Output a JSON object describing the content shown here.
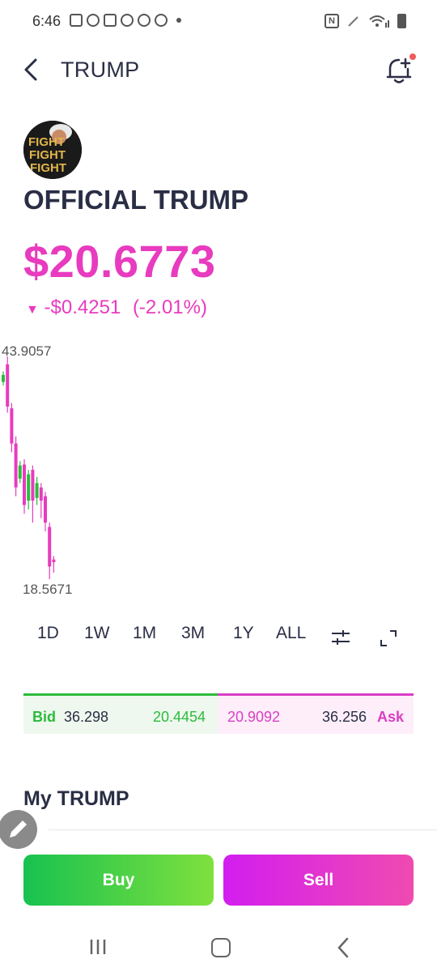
{
  "status_bar": {
    "time": "6:46"
  },
  "header": {
    "title": "TRUMP"
  },
  "coin": {
    "avatar_text": [
      "FIGHT",
      "FIGHT",
      "FIGHT"
    ],
    "name": "OFFICIAL TRUMP",
    "price": "$20.6773",
    "change_arrow": "▼",
    "change": "-$0.4251",
    "change_pct": "(-2.01%)"
  },
  "chart": {
    "high_label": "43.9057",
    "low_label": "18.5671"
  },
  "chart_data": {
    "type": "candlestick",
    "y_range": [
      18.5671,
      43.9057
    ],
    "colors": {
      "up": "#2cbb3c",
      "down": "#e83bbf"
    },
    "candles": [
      {
        "open": 41.0,
        "close": 41.8,
        "high": 42.2,
        "low": 40.6
      },
      {
        "open": 43.0,
        "close": 38.2,
        "high": 43.9057,
        "low": 37.5
      },
      {
        "open": 38.0,
        "close": 34.0,
        "high": 38.6,
        "low": 33.0
      },
      {
        "open": 34.0,
        "close": 29.0,
        "high": 34.8,
        "low": 28.0
      },
      {
        "open": 30.0,
        "close": 31.5,
        "high": 32.0,
        "low": 29.5
      },
      {
        "open": 31.6,
        "close": 27.0,
        "high": 32.2,
        "low": 26.0
      },
      {
        "open": 27.5,
        "close": 30.5,
        "high": 31.0,
        "low": 26.5
      },
      {
        "open": 31.0,
        "close": 27.5,
        "high": 31.5,
        "low": 25.0
      },
      {
        "open": 27.8,
        "close": 29.5,
        "high": 30.2,
        "low": 27.0
      },
      {
        "open": 29.0,
        "close": 27.5,
        "high": 29.5,
        "low": 25.5
      },
      {
        "open": 28.0,
        "close": 25.0,
        "high": 28.5,
        "low": 24.0
      },
      {
        "open": 24.5,
        "close": 20.0,
        "high": 25.0,
        "low": 18.5671
      },
      {
        "open": 20.8,
        "close": 20.5,
        "high": 21.2,
        "low": 19.3
      }
    ]
  },
  "ranges": [
    "1D",
    "1W",
    "1M",
    "3M",
    "1Y",
    "ALL"
  ],
  "selected_range": "",
  "bidask": {
    "bid_label": "Bid",
    "bid_qty": "36.298",
    "bid_price": "20.4454",
    "ask_price": "20.9092",
    "ask_qty": "36.256",
    "ask_label": "Ask",
    "bid_color": "#2cbb3c",
    "ask_color": "#d93ec4"
  },
  "holdings": {
    "title": "My TRUMP"
  },
  "actions": {
    "buy": "Buy",
    "sell": "Sell"
  },
  "colors": {
    "accent_pink": "#e83bbf",
    "accent_green": "#2cbb3c",
    "text_dark": "#2a2e45"
  },
  "icons": [
    "back-arrow-icon",
    "bell-plus-icon",
    "chart-settings-icon",
    "expand-icon",
    "edit-pencil-icon"
  ]
}
